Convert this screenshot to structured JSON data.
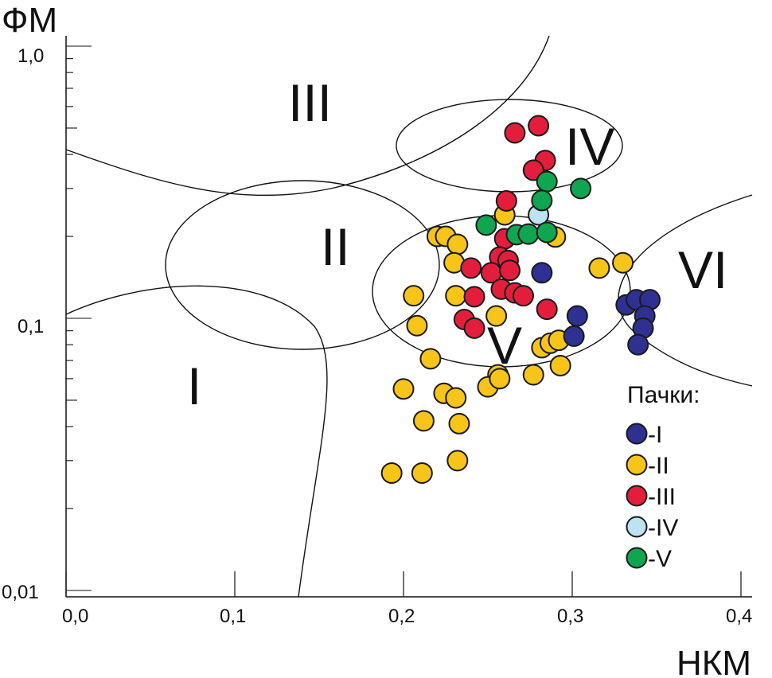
{
  "chart_data": {
    "type": "scatter",
    "xlabel": "НКМ",
    "ylabel": "ФМ",
    "xlim": [
      0.0,
      0.4
    ],
    "ylim": [
      0.01,
      1.0
    ],
    "yscale": "log",
    "x_ticks": [
      "0,0",
      "0,1",
      "0,2",
      "0,3",
      "0,4"
    ],
    "y_ticks": [
      "1,0",
      "0,1",
      "0,01"
    ],
    "grid": false,
    "legend": {
      "title": "Пачки:",
      "placement": "bottom-right"
    },
    "regions": [
      "I",
      "II",
      "III",
      "IV",
      "V",
      "VI"
    ],
    "series": [
      {
        "name": "-I",
        "color": "#2e3192",
        "points": [
          [
            0.282,
            0.147
          ],
          [
            0.303,
            0.102
          ],
          [
            0.301,
            0.086
          ],
          [
            0.332,
            0.112
          ],
          [
            0.338,
            0.117
          ],
          [
            0.346,
            0.117
          ],
          [
            0.343,
            0.102
          ],
          [
            0.342,
            0.092
          ],
          [
            0.339,
            0.08
          ]
        ]
      },
      {
        "name": "-II",
        "color": "#f7c419",
        "points": [
          [
            0.26,
            0.24
          ],
          [
            0.22,
            0.2
          ],
          [
            0.225,
            0.2
          ],
          [
            0.232,
            0.187
          ],
          [
            0.23,
            0.16
          ],
          [
            0.29,
            0.199
          ],
          [
            0.206,
            0.121
          ],
          [
            0.231,
            0.121
          ],
          [
            0.208,
            0.094
          ],
          [
            0.255,
            0.102
          ],
          [
            0.216,
            0.071
          ],
          [
            0.282,
            0.078
          ],
          [
            0.287,
            0.081
          ],
          [
            0.292,
            0.083
          ],
          [
            0.316,
            0.153
          ],
          [
            0.33,
            0.16
          ],
          [
            0.256,
            0.062
          ],
          [
            0.277,
            0.062
          ],
          [
            0.293,
            0.067
          ],
          [
            0.2,
            0.055
          ],
          [
            0.224,
            0.053
          ],
          [
            0.231,
            0.051
          ],
          [
            0.25,
            0.056
          ],
          [
            0.257,
            0.06
          ],
          [
            0.212,
            0.042
          ],
          [
            0.233,
            0.041
          ],
          [
            0.232,
            0.03
          ],
          [
            0.193,
            0.027
          ],
          [
            0.211,
            0.027
          ]
        ]
      },
      {
        "name": "-III",
        "color": "#e31e3c",
        "points": [
          [
            0.266,
            0.48
          ],
          [
            0.28,
            0.51
          ],
          [
            0.284,
            0.38
          ],
          [
            0.277,
            0.35
          ],
          [
            0.261,
            0.27
          ],
          [
            0.26,
            0.196
          ],
          [
            0.257,
            0.168
          ],
          [
            0.262,
            0.163
          ],
          [
            0.252,
            0.147
          ],
          [
            0.263,
            0.15
          ],
          [
            0.24,
            0.153
          ],
          [
            0.242,
            0.12
          ],
          [
            0.258,
            0.128
          ],
          [
            0.266,
            0.124
          ],
          [
            0.271,
            0.121
          ],
          [
            0.285,
            0.108
          ],
          [
            0.236,
            0.099
          ],
          [
            0.242,
            0.092
          ]
        ]
      },
      {
        "name": "-IV",
        "color": "#bde3f2",
        "points": [
          [
            0.28,
            0.24
          ]
        ]
      },
      {
        "name": "-V",
        "color": "#10a550",
        "points": [
          [
            0.285,
            0.318
          ],
          [
            0.305,
            0.3
          ],
          [
            0.282,
            0.271
          ],
          [
            0.249,
            0.22
          ],
          [
            0.267,
            0.203
          ],
          [
            0.274,
            0.204
          ],
          [
            0.285,
            0.207
          ]
        ]
      }
    ]
  }
}
